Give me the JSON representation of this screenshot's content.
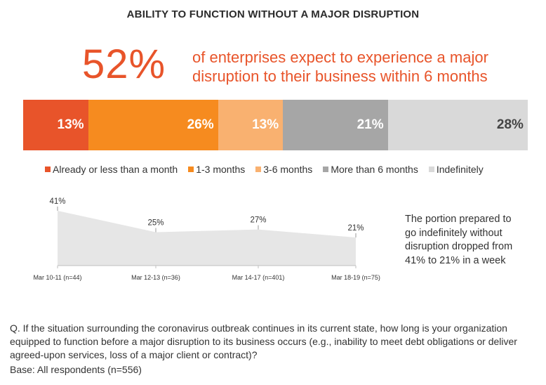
{
  "title": "ABILITY TO FUNCTION WITHOUT A MAJOR DISRUPTION",
  "headline": {
    "percent": "52%",
    "text": "of enterprises expect to experience a major disruption to their business within 6 months"
  },
  "chart_data": [
    {
      "type": "bar",
      "orientation": "stacked-horizontal",
      "title": "",
      "series": [
        {
          "name": "Already or less than a month",
          "value": 13,
          "label": "13%",
          "color": "#e8542a",
          "label_color": "#ffffff"
        },
        {
          "name": "1-3 months",
          "value": 26,
          "label": "26%",
          "color": "#f68b1f",
          "label_color": "#ffffff"
        },
        {
          "name": "3-6 months",
          "value": 13,
          "label": "13%",
          "color": "#f9b170",
          "label_color": "#ffffff"
        },
        {
          "name": "More than 6 months",
          "value": 21,
          "label": "21%",
          "color": "#a6a6a6",
          "label_color": "#ffffff"
        },
        {
          "name": "Indefinitely",
          "value": 28,
          "label": "28%",
          "color": "#d9d9d9",
          "label_color": "#444444"
        }
      ],
      "legend_position": "bottom"
    },
    {
      "type": "area",
      "title": "",
      "categories": [
        "Mar 10-11 (n=44)",
        "Mar 12-13 (n=36)",
        "Mar 14-17 (n=401)",
        "Mar 18-19 (n=75)"
      ],
      "values": [
        41,
        25,
        27,
        21
      ],
      "data_labels": [
        "41%",
        "25%",
        "27%",
        "21%"
      ],
      "ylim": [
        0,
        41
      ],
      "color": "#e6e6e6"
    }
  ],
  "annotation": "The portion prepared to go indefinitely without disruption dropped from 41% to 21% in a week",
  "question": "Q. If the situation surrounding the coronavirus outbreak continues in its current state, how long is your organization equipped to function before a major disruption to its business occurs (e.g., inability to meet debt obligations or deliver agreed-upon services, loss of a major client or contract)?",
  "base": "Base: All respondents (n=556)"
}
